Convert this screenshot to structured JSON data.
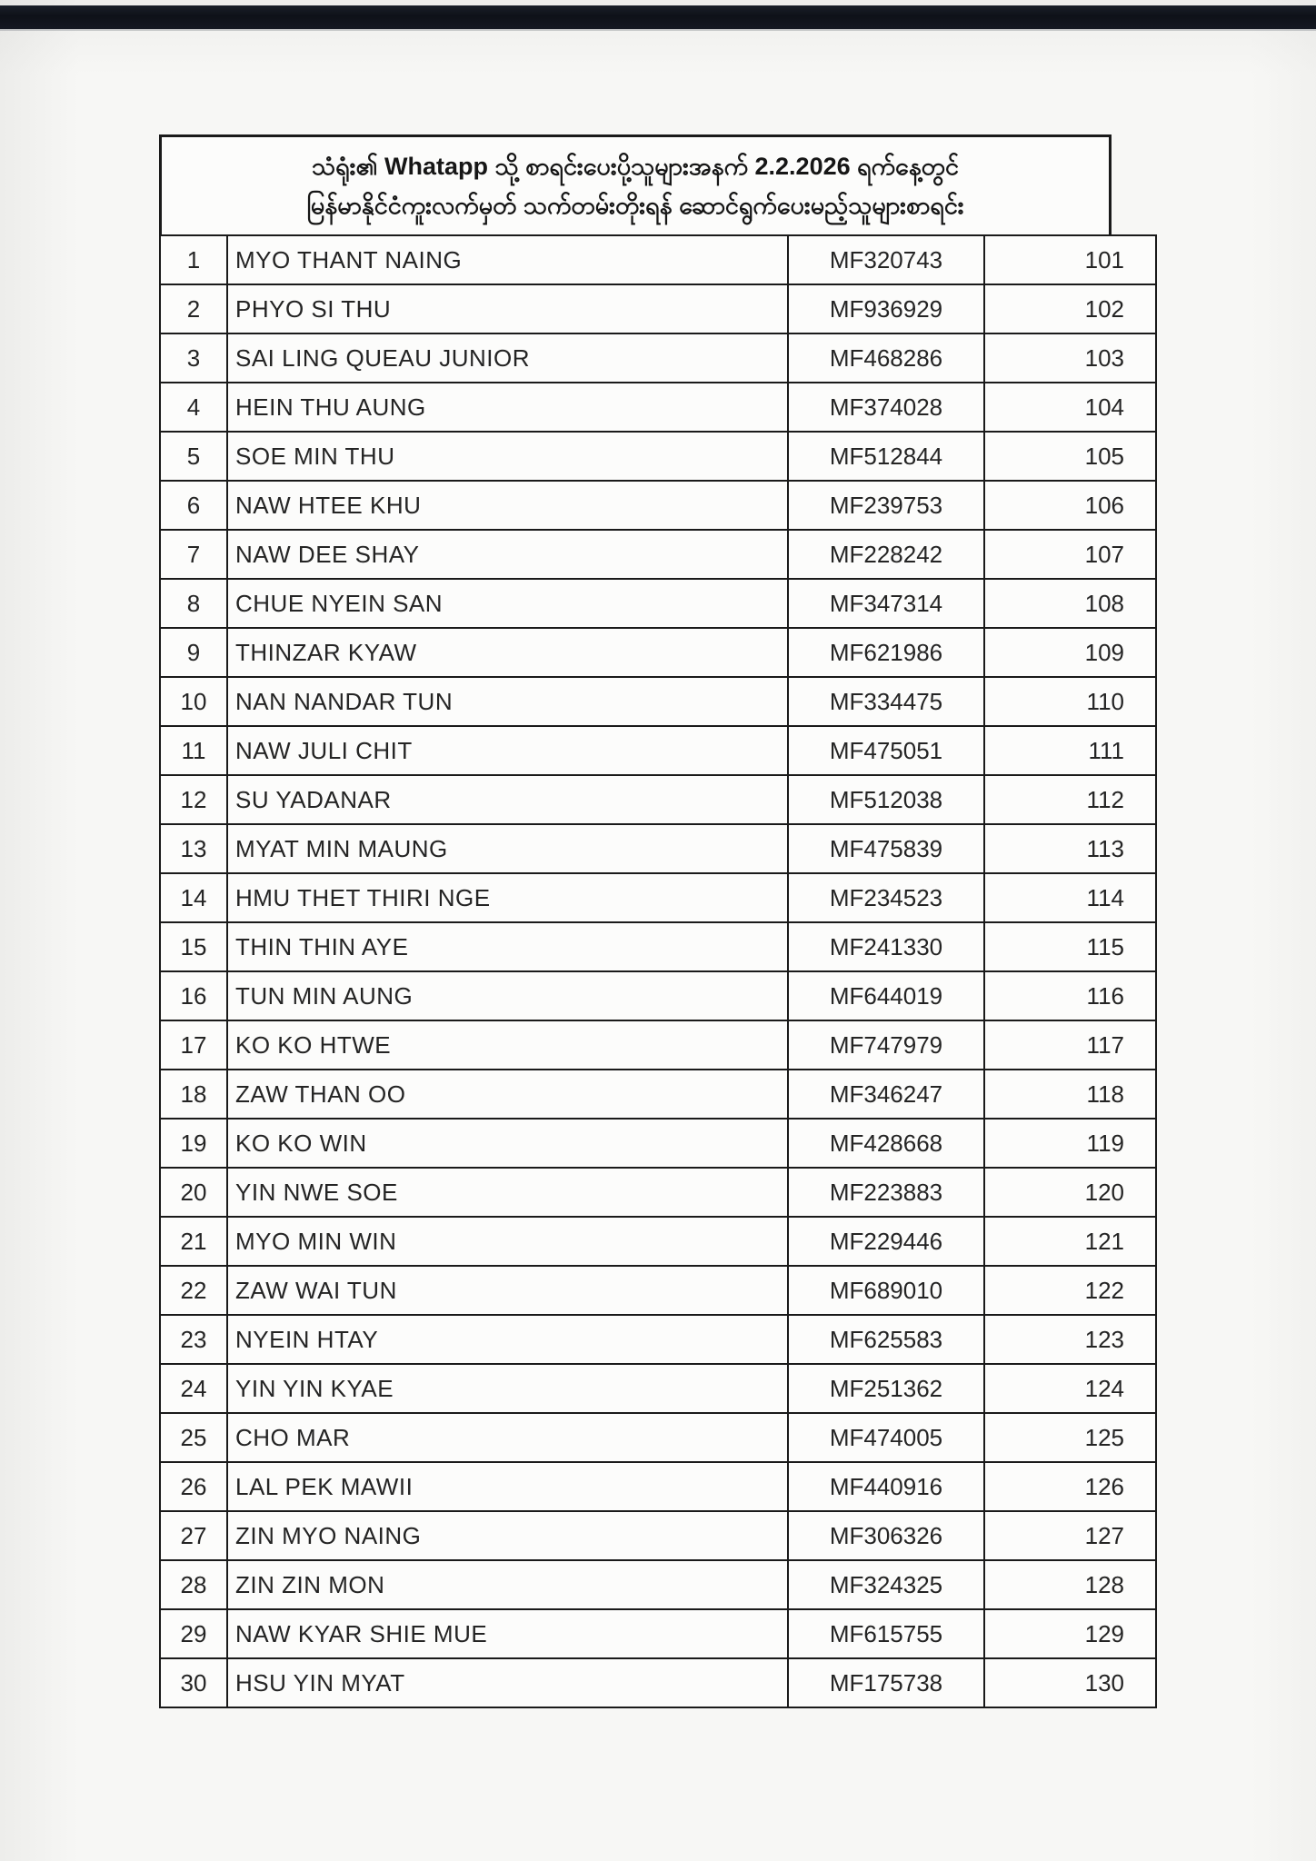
{
  "header": {
    "line1": "သံရုံး၏ Whatapp သို့ စာရင်းပေးပို့သူများအနက် 2.2.2026 ရက်နေ့တွင်",
    "line2": "မြန်မာနိုင်ငံကူးလက်မှတ် သက်တမ်းတိုးရန် ဆောင်ရွက်ပေးမည့်သူများစာရင်း"
  },
  "table": {
    "columns": [
      "no",
      "name",
      "passport_no",
      "serial"
    ],
    "rows": [
      {
        "no": "1",
        "name": "MYO THANT NAING",
        "passport": "MF320743",
        "serial": "101"
      },
      {
        "no": "2",
        "name": "PHYO SI THU",
        "passport": "MF936929",
        "serial": "102"
      },
      {
        "no": "3",
        "name": "SAI LING QUEAU JUNIOR",
        "passport": "MF468286",
        "serial": "103"
      },
      {
        "no": "4",
        "name": "HEIN THU AUNG",
        "passport": "MF374028",
        "serial": "104"
      },
      {
        "no": "5",
        "name": "SOE MIN THU",
        "passport": "MF512844",
        "serial": "105"
      },
      {
        "no": "6",
        "name": "NAW HTEE KHU",
        "passport": "MF239753",
        "serial": "106"
      },
      {
        "no": "7",
        "name": "NAW DEE SHAY",
        "passport": "MF228242",
        "serial": "107"
      },
      {
        "no": "8",
        "name": "CHUE NYEIN SAN",
        "passport": "MF347314",
        "serial": "108"
      },
      {
        "no": "9",
        "name": "THINZAR KYAW",
        "passport": "MF621986",
        "serial": "109"
      },
      {
        "no": "10",
        "name": "NAN NANDAR TUN",
        "passport": "MF334475",
        "serial": "110"
      },
      {
        "no": "11",
        "name": "NAW JULI CHIT",
        "passport": "MF475051",
        "serial": "111"
      },
      {
        "no": "12",
        "name": "SU YADANAR",
        "passport": "MF512038",
        "serial": "112"
      },
      {
        "no": "13",
        "name": "MYAT MIN MAUNG",
        "passport": "MF475839",
        "serial": "113"
      },
      {
        "no": "14",
        "name": "HMU THET THIRI NGE",
        "passport": "MF234523",
        "serial": "114"
      },
      {
        "no": "15",
        "name": "THIN THIN AYE",
        "passport": "MF241330",
        "serial": "115"
      },
      {
        "no": "16",
        "name": "TUN MIN AUNG",
        "passport": "MF644019",
        "serial": "116"
      },
      {
        "no": "17",
        "name": "KO KO HTWE",
        "passport": "MF747979",
        "serial": "117"
      },
      {
        "no": "18",
        "name": "ZAW THAN OO",
        "passport": "MF346247",
        "serial": "118"
      },
      {
        "no": "19",
        "name": "KO KO WIN",
        "passport": "MF428668",
        "serial": "119"
      },
      {
        "no": "20",
        "name": "YIN NWE SOE",
        "passport": "MF223883",
        "serial": "120"
      },
      {
        "no": "21",
        "name": "MYO MIN WIN",
        "passport": "MF229446",
        "serial": "121"
      },
      {
        "no": "22",
        "name": "ZAW WAI TUN",
        "passport": "MF689010",
        "serial": "122"
      },
      {
        "no": "23",
        "name": "NYEIN HTAY",
        "passport": "MF625583",
        "serial": "123"
      },
      {
        "no": "24",
        "name": "YIN YIN KYAE",
        "passport": "MF251362",
        "serial": "124"
      },
      {
        "no": "25",
        "name": "CHO MAR",
        "passport": "MF474005",
        "serial": "125"
      },
      {
        "no": "26",
        "name": "LAL PEK MAWII",
        "passport": "MF440916",
        "serial": "126"
      },
      {
        "no": "27",
        "name": "ZIN MYO NAING",
        "passport": "MF306326",
        "serial": "127"
      },
      {
        "no": "28",
        "name": "ZIN ZIN MON",
        "passport": "MF324325",
        "serial": "128"
      },
      {
        "no": "29",
        "name": "NAW KYAR SHIE MUE",
        "passport": "MF615755",
        "serial": "129"
      },
      {
        "no": "30",
        "name": "HSU YIN MYAT",
        "passport": "MF175738",
        "serial": "130"
      }
    ]
  },
  "colors": {
    "paper": "#f7f7f5",
    "table_bg": "#fcfcfb",
    "border": "#1a1a1a",
    "text": "#242424",
    "top_band": "#0e1118"
  }
}
